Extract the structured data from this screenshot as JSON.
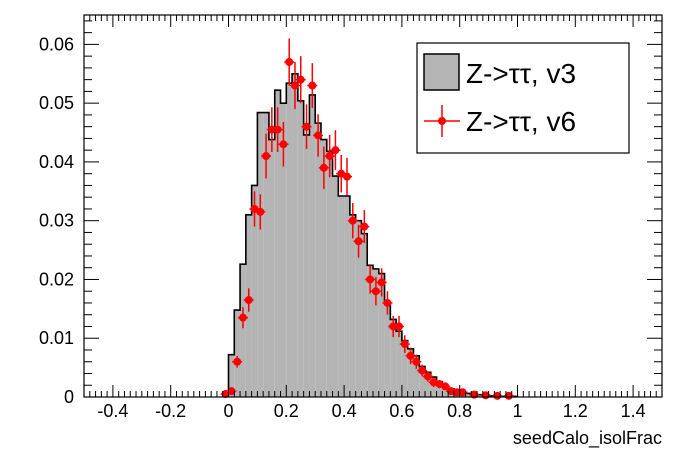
{
  "chart_data": {
    "type": "histogram",
    "title": "",
    "xlabel": "seedCalo_isolFrac",
    "ylabel": "",
    "xlim": [
      -0.5,
      1.5
    ],
    "ylim": [
      0,
      0.065
    ],
    "xticks": [
      -0.4,
      -0.2,
      0,
      0.2,
      0.4,
      0.6,
      0.8,
      1,
      1.2,
      1.4
    ],
    "xtick_labels": [
      "-0.4",
      "-0.2",
      "0",
      "0.2",
      "0.4",
      "0.6",
      "0.8",
      "1",
      "1.2",
      "1.4"
    ],
    "yticks": [
      0,
      0.01,
      0.02,
      0.03,
      0.04,
      0.05,
      0.06
    ],
    "ytick_labels": [
      "0",
      "0.01",
      "0.02",
      "0.03",
      "0.04",
      "0.05",
      "0.06"
    ],
    "bin_width": 0.02,
    "legend": {
      "position": "top-right",
      "entries": [
        {
          "label": "Z->ττ, v3",
          "style": "filled-histogram",
          "color": "#b4b4b4"
        },
        {
          "label": "Z->ττ, v6",
          "style": "points-with-errors",
          "color": "#ff0000"
        }
      ]
    },
    "series": [
      {
        "name": "Z->ττ, v3",
        "style": "filled-histogram",
        "fill": "#b4b4b4",
        "line": "#000000",
        "bin_low": [
          -0.02,
          0.0,
          0.02,
          0.04,
          0.06,
          0.08,
          0.1,
          0.12,
          0.14,
          0.16,
          0.18,
          0.2,
          0.22,
          0.24,
          0.26,
          0.28,
          0.3,
          0.32,
          0.34,
          0.36,
          0.38,
          0.4,
          0.42,
          0.44,
          0.46,
          0.48,
          0.5,
          0.52,
          0.54,
          0.56,
          0.58,
          0.6,
          0.62,
          0.64,
          0.66,
          0.68,
          0.7,
          0.72,
          0.74,
          0.76,
          0.78,
          0.8,
          0.82,
          0.84,
          0.86,
          0.88,
          0.9,
          0.92,
          0.94,
          0.96,
          0.98
        ],
        "values": [
          0.0008,
          0.0072,
          0.0148,
          0.0226,
          0.031,
          0.036,
          0.0484,
          0.0484,
          0.0438,
          0.0522,
          0.05,
          0.0534,
          0.055,
          0.0504,
          0.0446,
          0.0514,
          0.0466,
          0.0438,
          0.0418,
          0.0376,
          0.0342,
          0.0342,
          0.031,
          0.03,
          0.0278,
          0.0224,
          0.0218,
          0.021,
          0.016,
          0.0132,
          0.0112,
          0.0096,
          0.0082,
          0.007,
          0.0052,
          0.0042,
          0.0034,
          0.0026,
          0.0018,
          0.0014,
          0.001,
          0.0008,
          0.0006,
          0.0005,
          0.0004,
          0.0003,
          0.0002,
          0.0002,
          0.0001,
          0.0001,
          0.0001
        ]
      },
      {
        "name": "Z->ττ, v6",
        "style": "points-with-errors",
        "color": "#ff0000",
        "x": [
          -0.01,
          0.01,
          0.03,
          0.05,
          0.07,
          0.09,
          0.11,
          0.13,
          0.15,
          0.17,
          0.19,
          0.21,
          0.23,
          0.25,
          0.27,
          0.29,
          0.31,
          0.33,
          0.35,
          0.37,
          0.39,
          0.41,
          0.43,
          0.45,
          0.47,
          0.49,
          0.51,
          0.53,
          0.55,
          0.57,
          0.59,
          0.61,
          0.63,
          0.65,
          0.67,
          0.69,
          0.71,
          0.73,
          0.75,
          0.77,
          0.79,
          0.81,
          0.85,
          0.89,
          0.93,
          0.97
        ],
        "y": [
          0.0005,
          0.001,
          0.006,
          0.0135,
          0.0165,
          0.032,
          0.0315,
          0.041,
          0.0455,
          0.0455,
          0.043,
          0.057,
          0.053,
          0.054,
          0.046,
          0.053,
          0.0445,
          0.039,
          0.041,
          0.042,
          0.038,
          0.0375,
          0.03,
          0.0265,
          0.029,
          0.02,
          0.018,
          0.0195,
          0.016,
          0.012,
          0.012,
          0.009,
          0.007,
          0.006,
          0.0045,
          0.0035,
          0.0025,
          0.0022,
          0.0018,
          0.001,
          0.0008,
          0.0008,
          0.0004,
          0.0003,
          0.0002,
          0.0002
        ],
        "err": [
          0.0004,
          0.0006,
          0.001,
          0.0018,
          0.002,
          0.003,
          0.003,
          0.0038,
          0.0038,
          0.0038,
          0.0038,
          0.004,
          0.004,
          0.004,
          0.0038,
          0.0038,
          0.0036,
          0.0036,
          0.0036,
          0.0034,
          0.0032,
          0.0032,
          0.003,
          0.0028,
          0.0028,
          0.0024,
          0.0024,
          0.0024,
          0.002,
          0.0018,
          0.0018,
          0.0015,
          0.0014,
          0.0012,
          0.001,
          0.0009,
          0.0008,
          0.0007,
          0.0006,
          0.0005,
          0.0004,
          0.0004,
          0.0003,
          0.0002,
          0.0002,
          0.0002
        ]
      }
    ]
  }
}
